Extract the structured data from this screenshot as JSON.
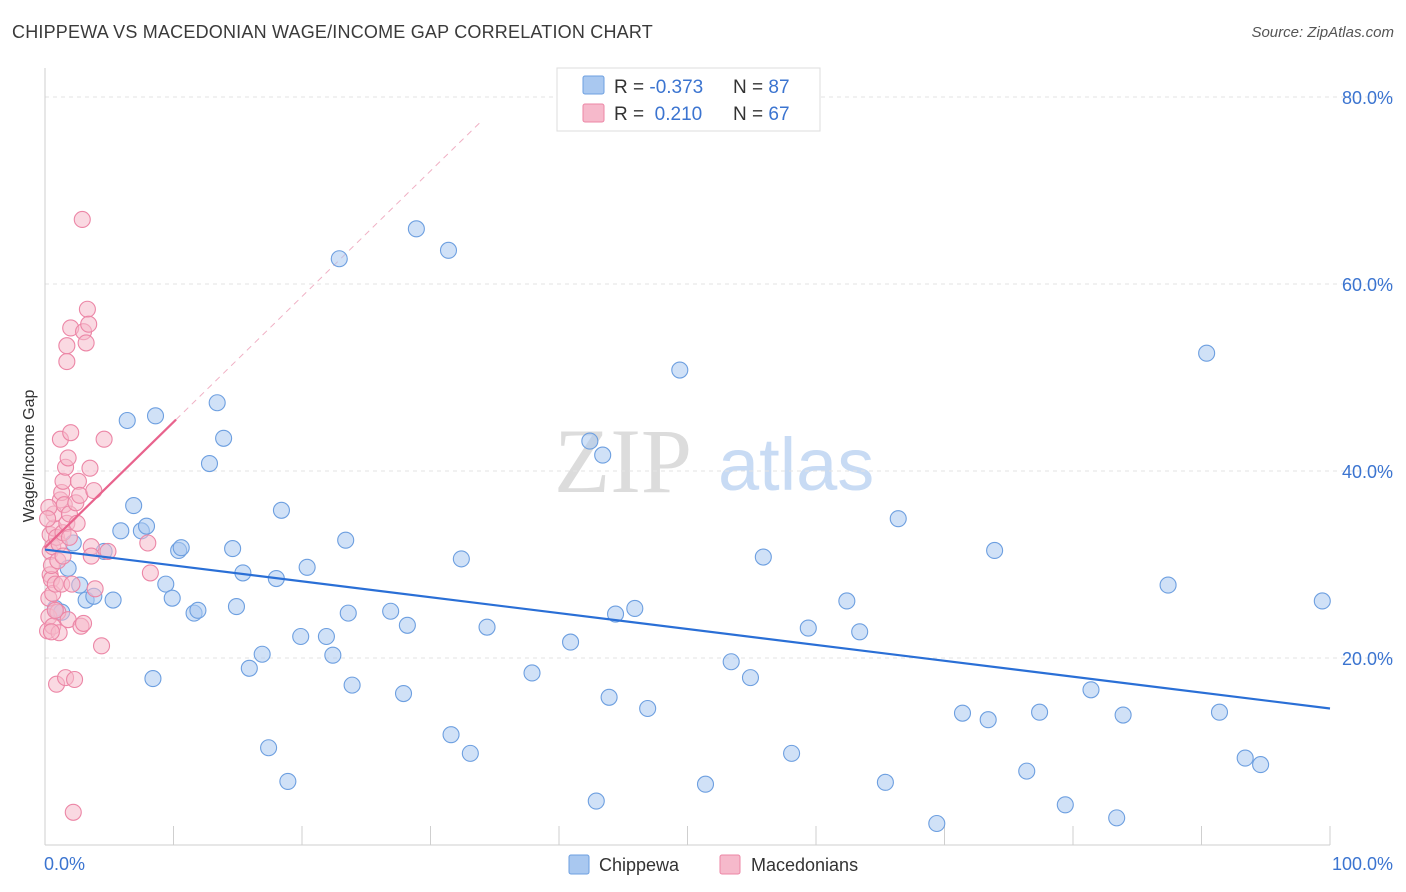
{
  "header": {
    "title": "CHIPPEWA VS MACEDONIAN WAGE/INCOME GAP CORRELATION CHART",
    "source": "Source: ZipAtlas.com"
  },
  "watermark": {
    "zip": "ZIP",
    "atlas": "atlas"
  },
  "legend_top": {
    "rows": [
      {
        "r_label": "R = ",
        "r_value": "-0.373",
        "n_label": "N = ",
        "n_value": "87",
        "color": "#a9c8f0"
      },
      {
        "r_label": "R = ",
        "r_value": " 0.210",
        "n_label": "N = ",
        "n_value": "67",
        "color": "#f6b9cb"
      }
    ]
  },
  "legend_bottom": {
    "items": [
      "Chippewa",
      "Macedonians"
    ]
  },
  "chart_data": {
    "type": "scatter",
    "title": "CHIPPEWA VS MACEDONIAN WAGE/INCOME GAP CORRELATION CHART",
    "xlabel": "",
    "ylabel": "Wage/Income Gap",
    "xlim": [
      0,
      100
    ],
    "ylim": [
      0,
      80
    ],
    "x_tick_labels": [
      "0.0%",
      "100.0%"
    ],
    "y_tick_labels": [
      "20.0%",
      "40.0%",
      "60.0%",
      "80.0%"
    ],
    "y_gridlines": [
      20,
      40,
      60,
      80
    ],
    "legend_position": "bottom",
    "colors": {
      "chippewa": "#a9c8f0",
      "chippewa_edge": "#6d9fe0",
      "chippewa_line": "#2a6fd6",
      "macedonians": "#f6b9cb",
      "macedonians_edge": "#ec86a6",
      "macedonians_line": "#e8638d",
      "accent_text": "#3b74d0"
    },
    "series": [
      {
        "name": "Chippewa",
        "r": -0.373,
        "n": 87,
        "trend": {
          "x": [
            0,
            100
          ],
          "y": [
            31.6,
            14.6
          ]
        },
        "points": [
          [
            0.8,
            25.3
          ],
          [
            1.3,
            24.9
          ],
          [
            1.8,
            29.6
          ],
          [
            2.2,
            32.3
          ],
          [
            2.7,
            27.8
          ],
          [
            3.2,
            26.2
          ],
          [
            3.8,
            26.6
          ],
          [
            4.6,
            31.4
          ],
          [
            5.3,
            26.2
          ],
          [
            5.9,
            33.6
          ],
          [
            6.4,
            45.4
          ],
          [
            6.9,
            36.3
          ],
          [
            7.5,
            33.6
          ],
          [
            7.9,
            34.1
          ],
          [
            8.4,
            17.8
          ],
          [
            8.6,
            45.9
          ],
          [
            9.4,
            27.9
          ],
          [
            9.9,
            26.4
          ],
          [
            10.4,
            31.5
          ],
          [
            10.6,
            31.8
          ],
          [
            11.6,
            24.8
          ],
          [
            11.9,
            25.1
          ],
          [
            12.8,
            40.8
          ],
          [
            13.4,
            47.3
          ],
          [
            13.9,
            43.5
          ],
          [
            14.6,
            31.7
          ],
          [
            14.9,
            25.5
          ],
          [
            15.4,
            29.1
          ],
          [
            15.9,
            18.9
          ],
          [
            16.9,
            20.4
          ],
          [
            17.4,
            10.4
          ],
          [
            18.4,
            35.8
          ],
          [
            18.9,
            6.8
          ],
          [
            19.9,
            22.3
          ],
          [
            20.4,
            29.7
          ],
          [
            22.4,
            20.3
          ],
          [
            22.9,
            62.7
          ],
          [
            23.4,
            32.6
          ],
          [
            23.6,
            24.8
          ],
          [
            23.9,
            17.1
          ],
          [
            26.9,
            25.0
          ],
          [
            27.9,
            16.2
          ],
          [
            28.2,
            23.5
          ],
          [
            28.9,
            65.9
          ],
          [
            31.4,
            63.6
          ],
          [
            31.6,
            11.8
          ],
          [
            32.4,
            30.6
          ],
          [
            33.1,
            9.8
          ],
          [
            34.4,
            23.3
          ],
          [
            37.9,
            18.4
          ],
          [
            40.9,
            21.7
          ],
          [
            42.4,
            43.2
          ],
          [
            42.9,
            4.7
          ],
          [
            43.4,
            41.7
          ],
          [
            43.9,
            15.8
          ],
          [
            44.4,
            24.7
          ],
          [
            45.9,
            25.3
          ],
          [
            46.9,
            14.6
          ],
          [
            49.4,
            50.8
          ],
          [
            51.4,
            6.5
          ],
          [
            53.4,
            19.6
          ],
          [
            54.9,
            17.9
          ],
          [
            55.9,
            30.8
          ],
          [
            58.1,
            9.8
          ],
          [
            59.4,
            23.2
          ],
          [
            62.4,
            26.1
          ],
          [
            63.4,
            22.8
          ],
          [
            65.4,
            6.7
          ],
          [
            66.4,
            34.9
          ],
          [
            69.4,
            2.3
          ],
          [
            71.4,
            14.1
          ],
          [
            73.4,
            13.4
          ],
          [
            73.9,
            31.5
          ],
          [
            76.4,
            7.9
          ],
          [
            77.4,
            14.2
          ],
          [
            79.4,
            4.3
          ],
          [
            81.4,
            16.6
          ],
          [
            83.4,
            2.9
          ],
          [
            83.9,
            13.9
          ],
          [
            87.4,
            27.8
          ],
          [
            90.4,
            52.6
          ],
          [
            91.4,
            14.2
          ],
          [
            93.4,
            9.3
          ],
          [
            94.6,
            8.6
          ],
          [
            99.4,
            26.1
          ],
          [
            21.9,
            22.3
          ],
          [
            18.0,
            28.5
          ]
        ]
      },
      {
        "name": "Macedonians",
        "r": 0.21,
        "n": 67,
        "trend": {
          "x": [
            0,
            10.2
          ],
          "y": [
            31.8,
            45.5
          ]
        },
        "points": [
          [
            0.2,
            22.9
          ],
          [
            0.3,
            24.4
          ],
          [
            0.3,
            26.4
          ],
          [
            0.4,
            28.9
          ],
          [
            0.4,
            31.4
          ],
          [
            0.4,
            33.2
          ],
          [
            0.5,
            28.4
          ],
          [
            0.5,
            29.9
          ],
          [
            0.6,
            31.9
          ],
          [
            0.6,
            26.9
          ],
          [
            0.7,
            33.9
          ],
          [
            0.7,
            35.4
          ],
          [
            0.8,
            27.9
          ],
          [
            0.9,
            32.9
          ],
          [
            0.9,
            17.2
          ],
          [
            1.0,
            24.9
          ],
          [
            1.0,
            30.4
          ],
          [
            1.1,
            32.2
          ],
          [
            1.2,
            36.9
          ],
          [
            1.2,
            43.4
          ],
          [
            1.3,
            37.7
          ],
          [
            1.3,
            27.9
          ],
          [
            1.4,
            33.4
          ],
          [
            1.4,
            38.9
          ],
          [
            1.4,
            30.9
          ],
          [
            1.5,
            36.4
          ],
          [
            1.6,
            40.4
          ],
          [
            1.6,
            17.9
          ],
          [
            1.7,
            34.4
          ],
          [
            1.7,
            51.7
          ],
          [
            1.7,
            53.4
          ],
          [
            1.8,
            24.1
          ],
          [
            1.8,
            41.4
          ],
          [
            1.9,
            32.9
          ],
          [
            1.9,
            35.4
          ],
          [
            2.0,
            44.1
          ],
          [
            2.0,
            55.3
          ],
          [
            2.1,
            27.9
          ],
          [
            2.2,
            3.5
          ],
          [
            2.3,
            17.7
          ],
          [
            2.4,
            36.6
          ],
          [
            2.5,
            34.4
          ],
          [
            2.6,
            38.9
          ],
          [
            2.7,
            37.4
          ],
          [
            2.8,
            23.4
          ],
          [
            2.9,
            66.9
          ],
          [
            3.0,
            23.7
          ],
          [
            3.0,
            54.9
          ],
          [
            3.2,
            53.7
          ],
          [
            3.3,
            57.3
          ],
          [
            3.4,
            55.7
          ],
          [
            3.5,
            40.3
          ],
          [
            3.6,
            31.9
          ],
          [
            3.6,
            30.9
          ],
          [
            3.8,
            37.9
          ],
          [
            3.9,
            27.4
          ],
          [
            4.4,
            21.3
          ],
          [
            4.6,
            43.4
          ],
          [
            4.9,
            31.4
          ],
          [
            8.0,
            32.3
          ],
          [
            8.2,
            29.1
          ],
          [
            0.6,
            23.4
          ],
          [
            1.1,
            22.7
          ],
          [
            0.8,
            25.1
          ],
          [
            0.3,
            36.1
          ],
          [
            0.2,
            34.9
          ],
          [
            0.5,
            22.8
          ]
        ]
      }
    ]
  }
}
